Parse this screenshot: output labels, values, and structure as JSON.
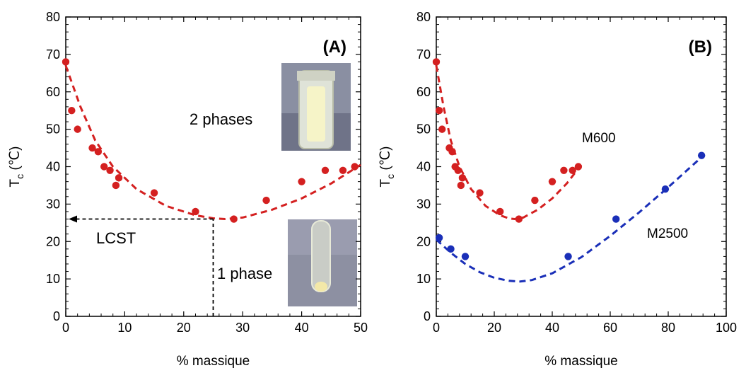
{
  "chart_data": [
    {
      "type": "scatter",
      "panel_label": "(A)",
      "xlabel": "% massique",
      "ylabel": "T",
      "ylabel_sub": "c",
      "ylabel_unit": " (℃)",
      "xlim": [
        0,
        50
      ],
      "ylim": [
        0,
        80
      ],
      "xticks": [
        "0",
        "10",
        "20",
        "30",
        "40",
        "50"
      ],
      "yticks": [
        "0",
        "10",
        "20",
        "30",
        "40",
        "50",
        "60",
        "70",
        "80"
      ],
      "series": [
        {
          "color": "#d42020",
          "points": [
            [
              0,
              68
            ],
            [
              1,
              55
            ],
            [
              2,
              50
            ],
            [
              4.5,
              45
            ],
            [
              5.5,
              44
            ],
            [
              6.5,
              40
            ],
            [
              7.5,
              39
            ],
            [
              8.5,
              35
            ],
            [
              9,
              37
            ],
            [
              15,
              33
            ],
            [
              22,
              28
            ],
            [
              28.5,
              26
            ],
            [
              34,
              31
            ],
            [
              40,
              36
            ],
            [
              44,
              39
            ],
            [
              47,
              39
            ],
            [
              49,
              40
            ]
          ],
          "fit": [
            [
              0,
              67
            ],
            [
              2.5,
              56
            ],
            [
              5,
              47
            ],
            [
              8,
              40
            ],
            [
              12,
              34
            ],
            [
              17,
              29.5
            ],
            [
              22,
              27
            ],
            [
              25,
              26.2
            ],
            [
              27,
              26
            ],
            [
              30,
              26.4
            ],
            [
              35,
              28.5
            ],
            [
              40,
              31.5
            ],
            [
              45,
              35.5
            ],
            [
              50,
              40.5
            ]
          ]
        }
      ],
      "annotations": {
        "two_phases": "2 phases",
        "one_phase": "1 phase",
        "lcst": "LCST"
      },
      "lcst_point": [
        25,
        26
      ]
    },
    {
      "type": "scatter",
      "panel_label": "(B)",
      "xlabel": "% massique",
      "ylabel": "T",
      "ylabel_sub": "c",
      "ylabel_unit": " (℃)",
      "xlim": [
        0,
        100
      ],
      "ylim": [
        0,
        80
      ],
      "xticks": [
        "0",
        "20",
        "40",
        "60",
        "80",
        "100"
      ],
      "yticks": [
        "0",
        "10",
        "20",
        "30",
        "40",
        "50",
        "60",
        "70",
        "80"
      ],
      "series": [
        {
          "name": "M600",
          "color": "#d42020",
          "points": [
            [
              0,
              68
            ],
            [
              1,
              55
            ],
            [
              2,
              50
            ],
            [
              4.5,
              45
            ],
            [
              5.5,
              44
            ],
            [
              6.5,
              40
            ],
            [
              7.5,
              39
            ],
            [
              8.5,
              35
            ],
            [
              9,
              37
            ],
            [
              15,
              33
            ],
            [
              22,
              28
            ],
            [
              28.5,
              26
            ],
            [
              34,
              31
            ],
            [
              40,
              36
            ],
            [
              44,
              39
            ],
            [
              47,
              39
            ],
            [
              49,
              40
            ]
          ],
          "fit": [
            [
              0,
              67
            ],
            [
              2.5,
              56
            ],
            [
              5,
              47
            ],
            [
              8,
              40
            ],
            [
              12,
              34
            ],
            [
              17,
              29.5
            ],
            [
              22,
              27
            ],
            [
              25,
              26.2
            ],
            [
              27,
              26
            ],
            [
              30,
              26.4
            ],
            [
              35,
              28.5
            ],
            [
              40,
              31.5
            ],
            [
              45,
              35.5
            ],
            [
              50,
              40.5
            ]
          ]
        },
        {
          "name": "M2500",
          "color": "#1a2fb8",
          "points": [
            [
              1,
              21
            ],
            [
              5,
              18
            ],
            [
              10,
              16
            ],
            [
              45.5,
              16
            ],
            [
              62,
              26
            ],
            [
              79,
              34
            ],
            [
              91.5,
              43
            ]
          ],
          "fit": [
            [
              0,
              20.5
            ],
            [
              5,
              17
            ],
            [
              10,
              14
            ],
            [
              15,
              11.8
            ],
            [
              20,
              10.3
            ],
            [
              25,
              9.5
            ],
            [
              29,
              9.3
            ],
            [
              33,
              9.7
            ],
            [
              40,
              11.5
            ],
            [
              50,
              15.8
            ],
            [
              60,
              21.5
            ],
            [
              70,
              27.8
            ],
            [
              80,
              34.5
            ],
            [
              90,
              41.5
            ],
            [
              92,
              43
            ]
          ]
        }
      ]
    }
  ]
}
